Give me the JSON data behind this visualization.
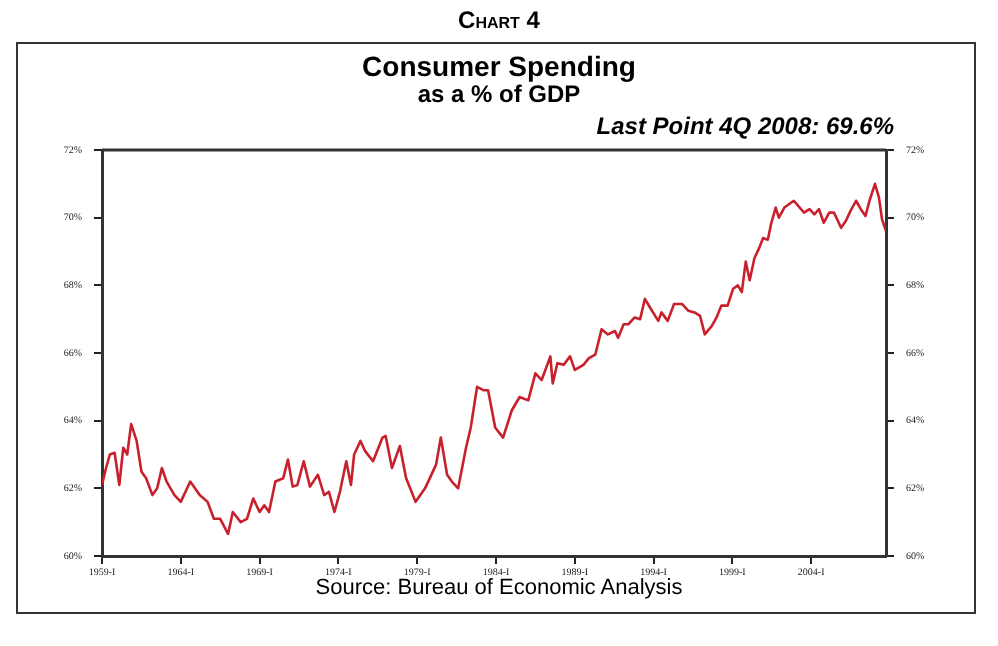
{
  "chart_data": {
    "type": "line",
    "title": "Consumer Spending",
    "subtitle": "as a % of GDP",
    "annotations": [
      "Chart 4",
      "Last Point 4Q 2008: 69.6%",
      "Source:  Bureau of Economic Analysis"
    ],
    "x": [
      1959.0,
      1959.2,
      1959.5,
      1959.8,
      1960.1,
      1960.35,
      1960.6,
      1960.85,
      1961.2,
      1961.5,
      1961.8,
      1962.2,
      1962.5,
      1962.8,
      1963.1,
      1963.6,
      1964.0,
      1964.6,
      1965.2,
      1965.7,
      1966.1,
      1966.5,
      1967.0,
      1967.3,
      1967.8,
      1968.2,
      1968.6,
      1969.0,
      1969.3,
      1969.6,
      1970.0,
      1970.5,
      1970.8,
      1971.1,
      1971.4,
      1971.8,
      1972.2,
      1972.7,
      1973.1,
      1973.4,
      1973.75,
      1974.1,
      1974.5,
      1974.8,
      1975.0,
      1975.4,
      1975.7,
      1976.2,
      1976.8,
      1977.0,
      1977.4,
      1977.9,
      1978.3,
      1978.9,
      1979.5,
      1980.2,
      1980.5,
      1980.9,
      1981.2,
      1981.6,
      1982.1,
      1982.4,
      1982.8,
      1983.2,
      1983.5,
      1983.95,
      1984.45,
      1985.0,
      1985.5,
      1986.05,
      1986.5,
      1986.9,
      1987.45,
      1987.6,
      1987.9,
      1988.3,
      1988.7,
      1989.0,
      1989.55,
      1989.9,
      1990.3,
      1990.7,
      1991.1,
      1991.55,
      1991.75,
      1992.1,
      1992.4,
      1992.8,
      1993.15,
      1993.45,
      1993.9,
      1994.3,
      1994.5,
      1994.9,
      1995.3,
      1995.8,
      1996.2,
      1996.6,
      1996.95,
      1997.25,
      1997.7,
      1998.0,
      1998.3,
      1998.7,
      1999.05,
      1999.35,
      1999.6,
      1999.85,
      2000.1,
      2000.4,
      2000.7,
      2000.95,
      2001.25,
      2001.45,
      2001.75,
      2001.95,
      2002.3,
      2002.9,
      2003.55,
      2003.9,
      2004.2,
      2004.5,
      2004.8,
      2005.15,
      2005.45,
      2005.9,
      2006.2,
      2006.5,
      2006.85,
      2007.15,
      2007.45,
      2007.7,
      2008.05,
      2008.3,
      2008.5,
      2008.75
    ],
    "series": [
      {
        "color": "#c8202c",
        "values": [
          62.1,
          62.5,
          63.0,
          63.05,
          62.1,
          63.2,
          63.0,
          63.9,
          63.4,
          62.5,
          62.3,
          61.8,
          62.0,
          62.6,
          62.2,
          61.8,
          61.6,
          62.2,
          61.8,
          61.6,
          61.1,
          61.1,
          60.65,
          61.3,
          61.0,
          61.1,
          61.7,
          61.3,
          61.5,
          61.3,
          62.2,
          62.3,
          62.85,
          62.05,
          62.1,
          62.8,
          62.05,
          62.4,
          61.8,
          61.9,
          61.3,
          61.9,
          62.8,
          62.1,
          63.0,
          63.4,
          63.1,
          62.8,
          63.5,
          63.55,
          62.6,
          63.25,
          62.3,
          61.6,
          62.0,
          62.7,
          63.5,
          62.4,
          62.2,
          62.0,
          63.2,
          63.8,
          65.0,
          64.9,
          64.9,
          63.8,
          63.5,
          64.3,
          64.7,
          64.6,
          65.4,
          65.2,
          65.9,
          65.1,
          65.7,
          65.65,
          65.9,
          65.5,
          65.65,
          65.85,
          65.95,
          66.7,
          66.55,
          66.65,
          66.45,
          66.85,
          66.85,
          67.05,
          67.0,
          67.6,
          67.25,
          66.95,
          67.2,
          66.95,
          67.45,
          67.45,
          67.25,
          67.2,
          67.1,
          66.55,
          66.8,
          67.05,
          67.4,
          67.4,
          67.9,
          68.0,
          67.8,
          68.7,
          68.15,
          68.8,
          69.1,
          69.4,
          69.35,
          69.8,
          70.3,
          70.0,
          70.3,
          70.5,
          70.15,
          70.25,
          70.1,
          70.25,
          69.85,
          70.15,
          70.15,
          69.7,
          69.9,
          70.2,
          70.5,
          70.25,
          70.05,
          70.5,
          71.0,
          70.6,
          69.95,
          69.6
        ]
      }
    ],
    "xlim": [
      1959,
      2008.75
    ],
    "xticks": [
      {
        "value": 1959,
        "label": "1959-I"
      },
      {
        "value": 1964,
        "label": "1964-I"
      },
      {
        "value": 1969,
        "label": "1969-I"
      },
      {
        "value": 1974,
        "label": "1974-I"
      },
      {
        "value": 1979,
        "label": "1979-I"
      },
      {
        "value": 1984,
        "label": "1984-I"
      },
      {
        "value": 1989,
        "label": "1989-I"
      },
      {
        "value": 1994,
        "label": "1994-I"
      },
      {
        "value": 1999,
        "label": "1999-I"
      },
      {
        "value": 2004,
        "label": "2004-I"
      }
    ],
    "ylim": [
      60,
      72
    ],
    "yticks": [
      {
        "value": 60,
        "label": "60%"
      },
      {
        "value": 62,
        "label": "62%"
      },
      {
        "value": 64,
        "label": "64%"
      },
      {
        "value": 66,
        "label": "66%"
      },
      {
        "value": 68,
        "label": "68%"
      },
      {
        "value": 70,
        "label": "70%"
      },
      {
        "value": 72,
        "label": "72%"
      }
    ],
    "y2lim": [
      60,
      72
    ],
    "y2ticks": [
      {
        "value": 60,
        "label": "60%"
      },
      {
        "value": 62,
        "label": "62%"
      },
      {
        "value": 64,
        "label": "64%"
      },
      {
        "value": 66,
        "label": "66%"
      },
      {
        "value": 68,
        "label": "68%"
      },
      {
        "value": 70,
        "label": "70%"
      },
      {
        "value": 72,
        "label": "72%"
      }
    ],
    "grid": false,
    "legend": false,
    "marker": "none",
    "line_style": "solid"
  }
}
